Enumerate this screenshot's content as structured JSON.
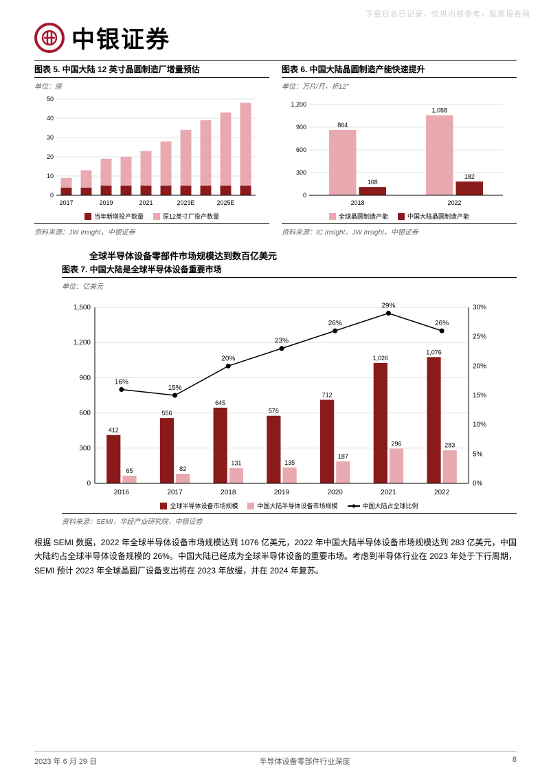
{
  "watermark": "下载日志已记录，仅供内部参考，股票报告网",
  "brand": "中银证券",
  "logo_char": "⊕",
  "colors": {
    "dark_red": "#8b1a1a",
    "light_pink": "#e8aab0",
    "grid": "#d0d0d0",
    "axis": "#000000",
    "black": "#000000",
    "text_gray": "#666666"
  },
  "chart5": {
    "title": "图表 5. 中国大陆 12 英寸晶圆制造厂增量预估",
    "unit": "单位：座",
    "categories": [
      "2017",
      "",
      "2019",
      "",
      "2021",
      "",
      "2023E",
      "",
      "2025E",
      ""
    ],
    "x_labels_shown": [
      "2017",
      "2019",
      "2021",
      "2023E",
      "2025E"
    ],
    "series": [
      {
        "name": "当年新增投产数量",
        "color": "#8b1a1a",
        "values": [
          4,
          4,
          5,
          5,
          5,
          5,
          5,
          5,
          5,
          5
        ]
      },
      {
        "name": "原12英寸厂投产数量",
        "color": "#e8aab0",
        "values": [
          5,
          9,
          14,
          15,
          18,
          23,
          29,
          34,
          38,
          43
        ]
      }
    ],
    "ylim": [
      0,
      50
    ],
    "ytick_step": 10,
    "grid_color": "#e0e0e0",
    "source": "资料来源：JW Insight，中银证券"
  },
  "chart6": {
    "title": "图表 6. 中国大陆晶圆制造产能快速提升",
    "unit": "单位：万片/月，折12\"",
    "categories": [
      "2018",
      "2022"
    ],
    "series": [
      {
        "name": "全球晶圆制造产能",
        "color": "#e8aab0",
        "values": [
          864,
          1058
        ]
      },
      {
        "name": "中国大陆晶圆制造产能",
        "color": "#8b1a1a",
        "values": [
          108,
          182
        ]
      }
    ],
    "value_labels": [
      [
        "864",
        "108"
      ],
      [
        "1,058",
        "182"
      ]
    ],
    "ylim": [
      0,
      1200
    ],
    "ytick_step": 300,
    "grid_color": "#e0e0e0",
    "source": "资料来源：IC Insight，JW Insight，中银证券"
  },
  "section_title": "全球半导体设备零部件市场规模达到数百亿美元",
  "chart7": {
    "title": "图表 7. 中国大陆是全球半导体设备重要市场",
    "unit": "单位：亿美元",
    "categories": [
      "2016",
      "2017",
      "2018",
      "2019",
      "2020",
      "2021",
      "2022"
    ],
    "bars": [
      {
        "name": "全球半导体设备市场规模",
        "color": "#8b1a1a",
        "values": [
          412,
          556,
          645,
          576,
          712,
          1026,
          1076
        ]
      },
      {
        "name": "中国大陆半导体设备市场规模",
        "color": "#e8aab0",
        "values": [
          65,
          82,
          131,
          135,
          187,
          296,
          283
        ]
      }
    ],
    "line": {
      "name": "中国大陆占全球比例",
      "color": "#000000",
      "values": [
        16,
        15,
        20,
        23,
        26,
        29,
        26
      ],
      "labels": [
        "16%",
        "15%",
        "20%",
        "23%",
        "26%",
        "29%",
        "26%"
      ]
    },
    "ylim_left": [
      0,
      1500
    ],
    "ytick_left": 300,
    "ylim_right": [
      0,
      30
    ],
    "ytick_right": 5,
    "value_labels_bar1": [
      "412",
      "556",
      "645",
      "576",
      "712",
      "1,026",
      "1,076"
    ],
    "value_labels_bar2": [
      "65",
      "82",
      "131",
      "135",
      "187",
      "296",
      "283"
    ],
    "grid_color": "#e0e0e0",
    "source": "资料来源：SEMI，华经产业研究院，中银证券"
  },
  "body_text": "根据 SEMI 数据，2022 年全球半导体设备市场规模达到 1076 亿美元，2022 年中国大陆半导体设备市场规模达到 283 亿美元，中国大陆约占全球半导体设备规模的 26%。中国大陆已经成为全球半导体设备的重要市场。考虑到半导体行业在 2023 年处于下行周期，SEMI 预计 2023 年全球晶圆厂设备支出将在 2023 年放缓，并在 2024 年复苏。",
  "footer": {
    "date": "2023 年 6 月 29 日",
    "title": "半导体设备零部件行业深度",
    "page": "8"
  }
}
